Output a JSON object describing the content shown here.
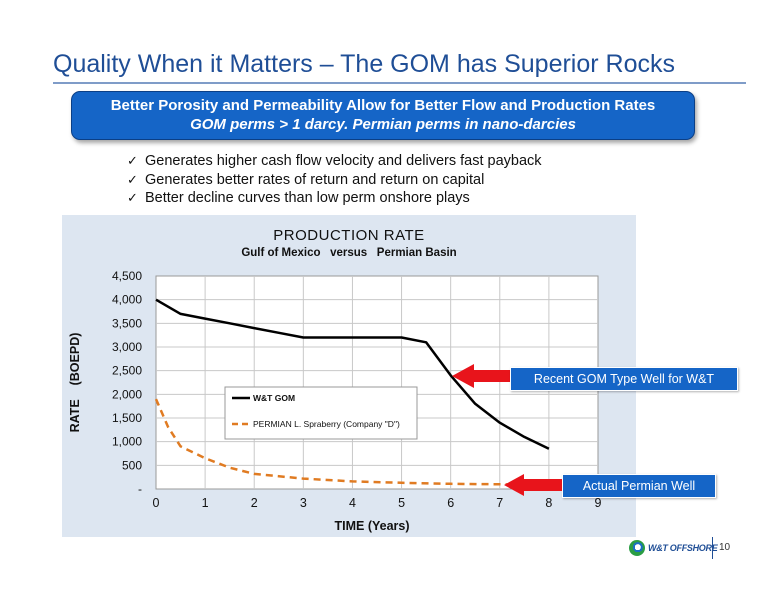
{
  "slide": {
    "title": "Quality When it Matters – The GOM has Superior Rocks",
    "banner_line1": "Better Porosity and Permeability Allow for Better Flow and Production Rates",
    "banner_line2": "GOM perms > 1 darcy.  Permian perms in nano-darcies",
    "bullets": [
      "Generates higher cash flow velocity and delivers fast payback",
      "Generates better rates of return and return on capital",
      "Better decline curves than low perm onshore plays"
    ],
    "callout_gom": "Recent GOM Type Well for W&T",
    "callout_permian": "Actual Permian Well",
    "logo_text": "W&T OFFSHORE",
    "page_number": "10"
  },
  "colors": {
    "title": "#1f4e96",
    "banner": "#1565c7",
    "panel": "#dde6f1",
    "gom_series": "#000000",
    "permian_series": "#e07b22",
    "arrow": "#e8141b"
  },
  "chart_data": {
    "type": "line",
    "title": "PRODUCTION RATE",
    "subtitle": "Gulf of Mexico   versus   Permian Basin",
    "xlabel": "TIME (Years)",
    "ylabel": "RATE    (BOEPD)",
    "xlim": [
      0,
      9
    ],
    "ylim": [
      0,
      4500
    ],
    "x_ticks": [
      "0",
      "1",
      "2",
      "3",
      "4",
      "5",
      "6",
      "7",
      "8",
      "9"
    ],
    "y_ticks": [
      "-",
      "500",
      "1,000",
      "1,500",
      "2,000",
      "2,500",
      "3,000",
      "3,500",
      "4,000",
      "4,500"
    ],
    "grid": true,
    "legend_position": "inside-center",
    "series": [
      {
        "name": "W&T GOM",
        "style": "solid",
        "x": [
          0,
          0.5,
          1,
          1.5,
          2,
          2.5,
          3,
          3.5,
          4,
          4.5,
          5,
          5.5,
          6,
          6.5,
          7,
          7.5,
          8
        ],
        "y": [
          4000,
          3700,
          3600,
          3500,
          3400,
          3300,
          3200,
          3200,
          3200,
          3200,
          3200,
          3100,
          2400,
          1800,
          1400,
          1100,
          850
        ]
      },
      {
        "name": "PERMIAN L. Spraberry  (Company \"D\")",
        "style": "dashed",
        "x": [
          0,
          0.25,
          0.5,
          1,
          1.5,
          2,
          3,
          4,
          5,
          6,
          7,
          7.5
        ],
        "y": [
          1900,
          1300,
          900,
          650,
          450,
          320,
          220,
          160,
          130,
          110,
          100,
          95
        ]
      }
    ]
  }
}
